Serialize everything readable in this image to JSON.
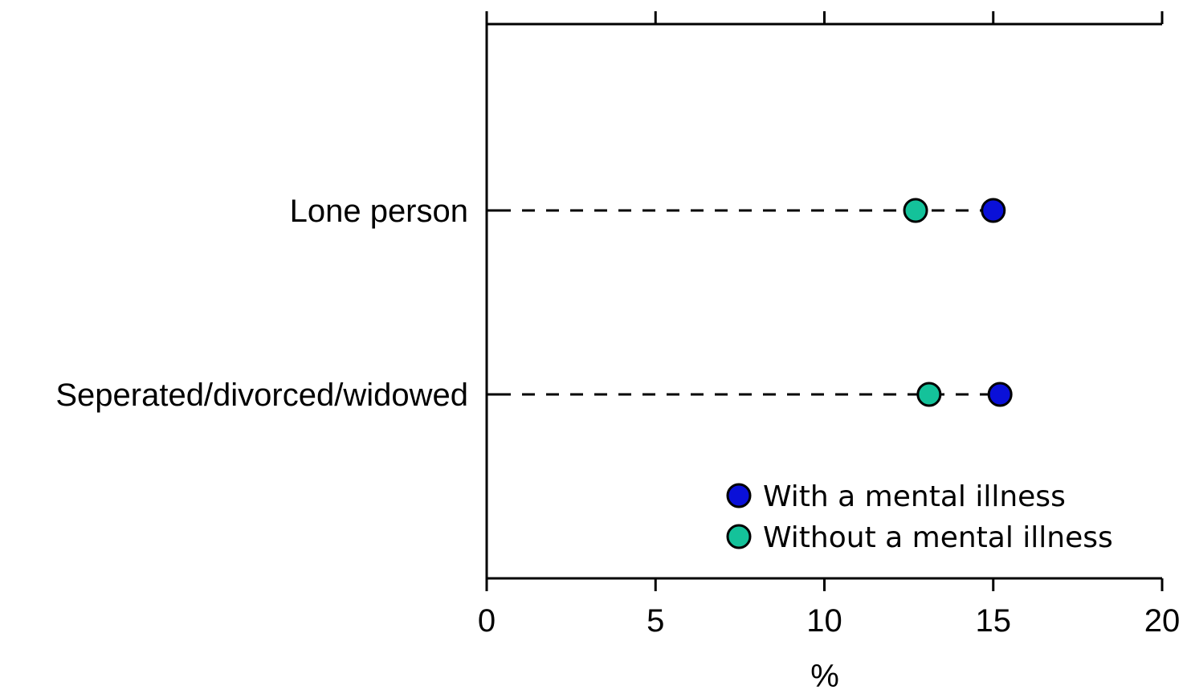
{
  "chart_data": {
    "type": "scatter",
    "orientation": "horizontal",
    "categories": [
      "Lone person",
      "Seperated/divorced/widowed"
    ],
    "series": [
      {
        "name": "With a mental illness",
        "color": "#0a10d8",
        "values": [
          15.0,
          15.2
        ]
      },
      {
        "name": "Without a mental illness",
        "color": "#14c29a",
        "values": [
          12.7,
          13.1
        ]
      }
    ],
    "xlabel": "%",
    "ylabel": "",
    "title": "",
    "xlim": [
      0,
      20
    ],
    "xticks": [
      "0",
      "5",
      "10",
      "15",
      "20"
    ],
    "xtick_values": [
      0,
      5,
      10,
      15,
      20
    ],
    "grid": false,
    "connector": "dashed",
    "legend_position": "bottom-right"
  }
}
